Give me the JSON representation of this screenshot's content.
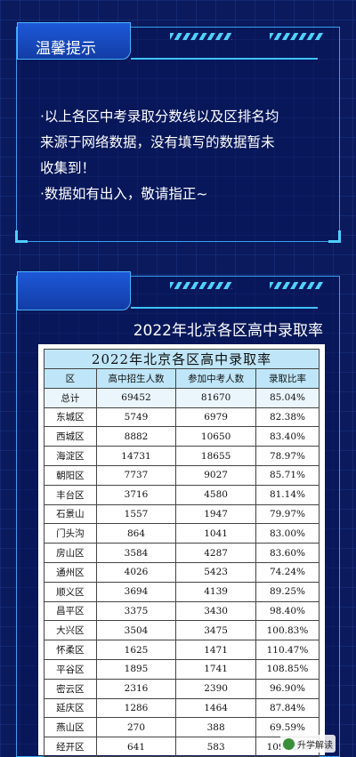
{
  "notice": {
    "title": "温馨提示",
    "lines": [
      "·以上各区中考录取分数线以及区排名均",
      "来源于网络数据，没有填写的数据暂未",
      "收集到！",
      "·数据如有出入，敬请指正~"
    ]
  },
  "section": {
    "heading": "2022年北京各区高中录取率"
  },
  "table": {
    "title": "2022年北京各区高中录取率",
    "headers": [
      "区",
      "高中招生人数",
      "参加中考人数",
      "录取比率"
    ],
    "rows": [
      [
        "总计",
        "69452",
        "81670",
        "85.04%"
      ],
      [
        "东城区",
        "5749",
        "6979",
        "82.38%"
      ],
      [
        "西城区",
        "8882",
        "10650",
        "83.40%"
      ],
      [
        "海淀区",
        "14731",
        "18655",
        "78.97%"
      ],
      [
        "朝阳区",
        "7737",
        "9027",
        "85.71%"
      ],
      [
        "丰台区",
        "3716",
        "4580",
        "81.14%"
      ],
      [
        "石景山",
        "1557",
        "1947",
        "79.97%"
      ],
      [
        "门头沟",
        "864",
        "1041",
        "83.00%"
      ],
      [
        "房山区",
        "3584",
        "4287",
        "83.60%"
      ],
      [
        "通州区",
        "4026",
        "5423",
        "74.24%"
      ],
      [
        "顺义区",
        "3694",
        "4139",
        "89.25%"
      ],
      [
        "昌平区",
        "3375",
        "3430",
        "98.40%"
      ],
      [
        "大兴区",
        "3504",
        "3475",
        "100.83%"
      ],
      [
        "怀柔区",
        "1625",
        "1471",
        "110.47%"
      ],
      [
        "平谷区",
        "1895",
        "1741",
        "108.85%"
      ],
      [
        "密云区",
        "2316",
        "2390",
        "96.90%"
      ],
      [
        "延庆区",
        "1286",
        "1464",
        "87.84%"
      ],
      [
        "燕山区",
        "270",
        "388",
        "69.59%"
      ],
      [
        "经开区",
        "641",
        "583",
        "109.95%"
      ]
    ]
  },
  "watermark": {
    "text": "升学解读",
    "icon": "wechat-icon"
  }
}
